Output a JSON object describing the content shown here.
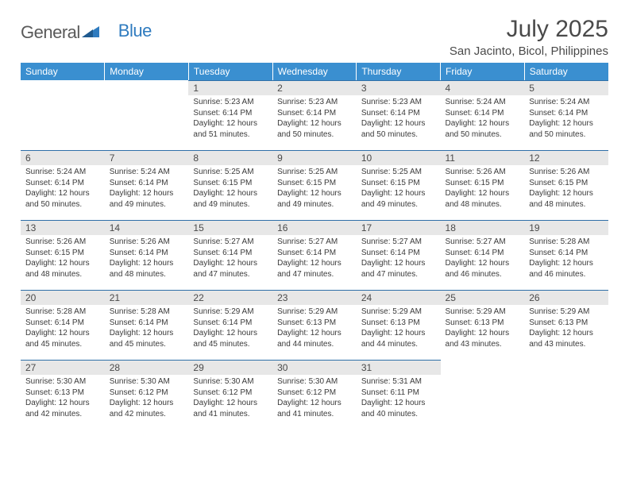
{
  "logo": {
    "word1": "General",
    "word2": "Blue"
  },
  "title": "July 2025",
  "location": "San Jacinto, Bicol, Philippines",
  "colors": {
    "header_bg": "#3a8fd0",
    "header_text": "#ffffff",
    "daynum_bg": "#e7e7e7",
    "daynum_border": "#2f6fa8",
    "body_text": "#3a3a3a",
    "logo_gray": "#5a5a5a",
    "logo_blue": "#2f7bbf"
  },
  "weekdays": [
    "Sunday",
    "Monday",
    "Tuesday",
    "Wednesday",
    "Thursday",
    "Friday",
    "Saturday"
  ],
  "weeks": [
    [
      null,
      null,
      {
        "n": "1",
        "sr": "5:23 AM",
        "ss": "6:14 PM",
        "dl": "12 hours and 51 minutes."
      },
      {
        "n": "2",
        "sr": "5:23 AM",
        "ss": "6:14 PM",
        "dl": "12 hours and 50 minutes."
      },
      {
        "n": "3",
        "sr": "5:23 AM",
        "ss": "6:14 PM",
        "dl": "12 hours and 50 minutes."
      },
      {
        "n": "4",
        "sr": "5:24 AM",
        "ss": "6:14 PM",
        "dl": "12 hours and 50 minutes."
      },
      {
        "n": "5",
        "sr": "5:24 AM",
        "ss": "6:14 PM",
        "dl": "12 hours and 50 minutes."
      }
    ],
    [
      {
        "n": "6",
        "sr": "5:24 AM",
        "ss": "6:14 PM",
        "dl": "12 hours and 50 minutes."
      },
      {
        "n": "7",
        "sr": "5:24 AM",
        "ss": "6:14 PM",
        "dl": "12 hours and 49 minutes."
      },
      {
        "n": "8",
        "sr": "5:25 AM",
        "ss": "6:15 PM",
        "dl": "12 hours and 49 minutes."
      },
      {
        "n": "9",
        "sr": "5:25 AM",
        "ss": "6:15 PM",
        "dl": "12 hours and 49 minutes."
      },
      {
        "n": "10",
        "sr": "5:25 AM",
        "ss": "6:15 PM",
        "dl": "12 hours and 49 minutes."
      },
      {
        "n": "11",
        "sr": "5:26 AM",
        "ss": "6:15 PM",
        "dl": "12 hours and 48 minutes."
      },
      {
        "n": "12",
        "sr": "5:26 AM",
        "ss": "6:15 PM",
        "dl": "12 hours and 48 minutes."
      }
    ],
    [
      {
        "n": "13",
        "sr": "5:26 AM",
        "ss": "6:15 PM",
        "dl": "12 hours and 48 minutes."
      },
      {
        "n": "14",
        "sr": "5:26 AM",
        "ss": "6:14 PM",
        "dl": "12 hours and 48 minutes."
      },
      {
        "n": "15",
        "sr": "5:27 AM",
        "ss": "6:14 PM",
        "dl": "12 hours and 47 minutes."
      },
      {
        "n": "16",
        "sr": "5:27 AM",
        "ss": "6:14 PM",
        "dl": "12 hours and 47 minutes."
      },
      {
        "n": "17",
        "sr": "5:27 AM",
        "ss": "6:14 PM",
        "dl": "12 hours and 47 minutes."
      },
      {
        "n": "18",
        "sr": "5:27 AM",
        "ss": "6:14 PM",
        "dl": "12 hours and 46 minutes."
      },
      {
        "n": "19",
        "sr": "5:28 AM",
        "ss": "6:14 PM",
        "dl": "12 hours and 46 minutes."
      }
    ],
    [
      {
        "n": "20",
        "sr": "5:28 AM",
        "ss": "6:14 PM",
        "dl": "12 hours and 45 minutes."
      },
      {
        "n": "21",
        "sr": "5:28 AM",
        "ss": "6:14 PM",
        "dl": "12 hours and 45 minutes."
      },
      {
        "n": "22",
        "sr": "5:29 AM",
        "ss": "6:14 PM",
        "dl": "12 hours and 45 minutes."
      },
      {
        "n": "23",
        "sr": "5:29 AM",
        "ss": "6:13 PM",
        "dl": "12 hours and 44 minutes."
      },
      {
        "n": "24",
        "sr": "5:29 AM",
        "ss": "6:13 PM",
        "dl": "12 hours and 44 minutes."
      },
      {
        "n": "25",
        "sr": "5:29 AM",
        "ss": "6:13 PM",
        "dl": "12 hours and 43 minutes."
      },
      {
        "n": "26",
        "sr": "5:29 AM",
        "ss": "6:13 PM",
        "dl": "12 hours and 43 minutes."
      }
    ],
    [
      {
        "n": "27",
        "sr": "5:30 AM",
        "ss": "6:13 PM",
        "dl": "12 hours and 42 minutes."
      },
      {
        "n": "28",
        "sr": "5:30 AM",
        "ss": "6:12 PM",
        "dl": "12 hours and 42 minutes."
      },
      {
        "n": "29",
        "sr": "5:30 AM",
        "ss": "6:12 PM",
        "dl": "12 hours and 41 minutes."
      },
      {
        "n": "30",
        "sr": "5:30 AM",
        "ss": "6:12 PM",
        "dl": "12 hours and 41 minutes."
      },
      {
        "n": "31",
        "sr": "5:31 AM",
        "ss": "6:11 PM",
        "dl": "12 hours and 40 minutes."
      },
      null,
      null
    ]
  ],
  "labels": {
    "sunrise": "Sunrise:",
    "sunset": "Sunset:",
    "daylight": "Daylight:"
  }
}
